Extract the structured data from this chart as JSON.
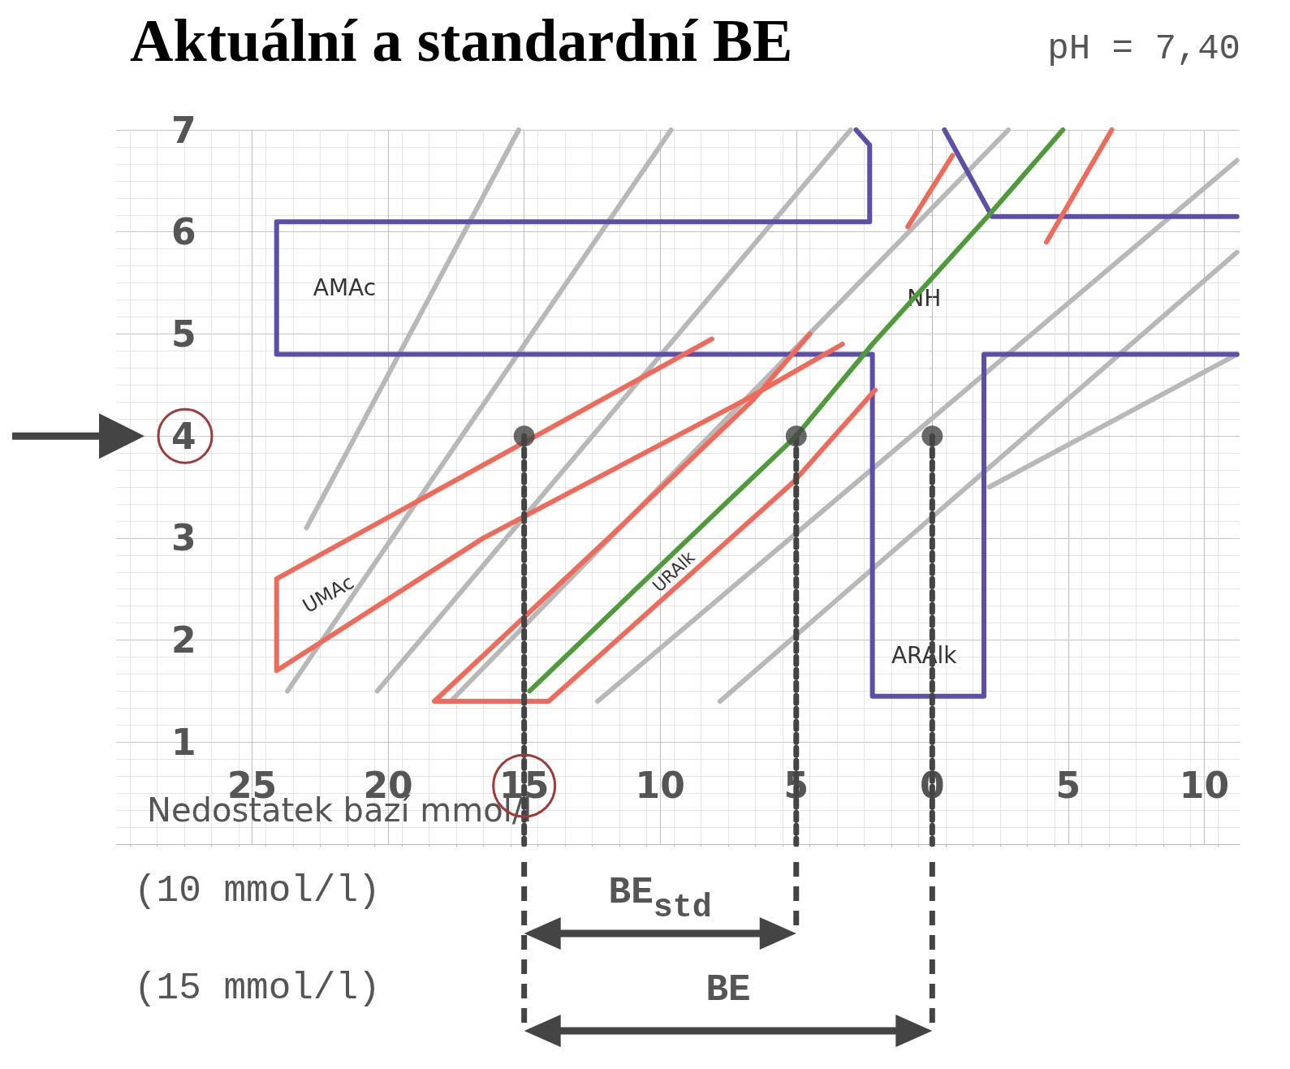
{
  "chart_data": {
    "type": "line",
    "title": "Aktuální a standardní BE",
    "xlabel": "Nedostatek bazí mmol/l",
    "xlim": [
      -30,
      11.3
    ],
    "xticks": [
      {
        "value": -25,
        "label": "25"
      },
      {
        "value": -20,
        "label": "20"
      },
      {
        "value": -15,
        "label": "15"
      },
      {
        "value": -10,
        "label": "10"
      },
      {
        "value": -5,
        "label": "5"
      },
      0,
      5,
      10
    ],
    "ylim": [
      0,
      7
    ],
    "yticks": [
      1,
      2,
      3,
      4,
      5,
      6,
      7
    ],
    "grid": true,
    "legend": false,
    "marker": "none",
    "line_style": "solid",
    "series": [
      {
        "color": "#b8b8b8",
        "x": [
          -23,
          -15.2
        ],
        "values": [
          3.1,
          7.0
        ]
      },
      {
        "color": "#b8b8b8",
        "x": [
          -23.7,
          -9.6
        ],
        "values": [
          1.5,
          7.0
        ]
      },
      {
        "color": "#b8b8b8",
        "x": [
          -20.4,
          -3.0
        ],
        "values": [
          1.5,
          7.0
        ]
      },
      {
        "color": "#b8b8b8",
        "x": [
          -17.7,
          2.8
        ],
        "values": [
          1.4,
          7.0
        ]
      },
      {
        "color": "#b8b8b8",
        "x": [
          -12.3,
          11.2
        ],
        "values": [
          1.4,
          6.7
        ]
      },
      {
        "color": "#b8b8b8",
        "x": [
          -7.8,
          11.2
        ],
        "values": [
          1.4,
          5.8
        ]
      },
      {
        "color": "#b8b8b8",
        "x": [
          2.1,
          11.2
        ],
        "values": [
          3.5,
          4.8
        ]
      },
      {
        "color": "#5b4fa8",
        "x": [
          -2.8,
          -2.3,
          -2.3,
          -24.1,
          -24.1,
          -2.2,
          -2.2,
          1.9,
          1.9,
          11.2
        ],
        "values": [
          7.0,
          6.85,
          6.1,
          6.1,
          4.8,
          4.8,
          1.45,
          1.45,
          4.8,
          4.8
        ]
      },
      {
        "color": "#5b4fa8",
        "x": [
          0.45,
          2.2,
          11.2
        ],
        "values": [
          7.0,
          6.15,
          6.15
        ]
      },
      {
        "color": "#f06a5c",
        "x": [
          -8.1,
          -24.1,
          -24.1,
          -16.5,
          -6.9,
          -3.3
        ],
        "values": [
          4.95,
          2.6,
          1.7,
          3.0,
          4.35,
          4.9
        ]
      },
      {
        "color": "#f06a5c",
        "x": [
          -4.5,
          -6.6,
          -11.7,
          -18.3,
          -14.1,
          -5.1,
          -2.1
        ],
        "values": [
          5.0,
          4.35,
          3.05,
          1.4,
          1.4,
          3.55,
          4.45
        ]
      },
      {
        "color": "#f06a5c",
        "x": [
          -0.9,
          0.75
        ],
        "values": [
          6.05,
          6.75
        ]
      },
      {
        "color": "#f06a5c",
        "x": [
          4.2,
          6.6
        ],
        "values": [
          5.9,
          7.0
        ]
      },
      {
        "name": "pH = 7,40",
        "color": "#4f9a3a",
        "x": [
          -14.8,
          -10.5,
          -5.0,
          -2.2,
          2.2,
          4.8
        ],
        "values": [
          1.5,
          2.6,
          4.0,
          4.9,
          6.2,
          7.0
        ]
      },
      {
        "type": "line",
        "line_style": "dashed",
        "color": "#444444",
        "x": [
          -15,
          -15
        ],
        "values": [
          4,
          0
        ]
      },
      {
        "type": "line",
        "line_style": "dashed",
        "color": "#444444",
        "x": [
          -5,
          -5
        ],
        "values": [
          4,
          0
        ]
      },
      {
        "type": "line",
        "line_style": "dashed",
        "color": "#444444",
        "x": [
          0,
          0
        ],
        "values": [
          4,
          0
        ]
      },
      {
        "type": "scatter",
        "marker": "circle",
        "color": "#444444",
        "x": [
          -15,
          -5,
          0
        ],
        "values": [
          4,
          4,
          4
        ]
      }
    ],
    "annotations": [
      "AMAc",
      "UMAc",
      "URAlk",
      "ARAlk",
      "NH",
      "(10 mmol/l)",
      "BE$_{std}$",
      "(15 mmol/l)",
      "BE"
    ]
  }
}
